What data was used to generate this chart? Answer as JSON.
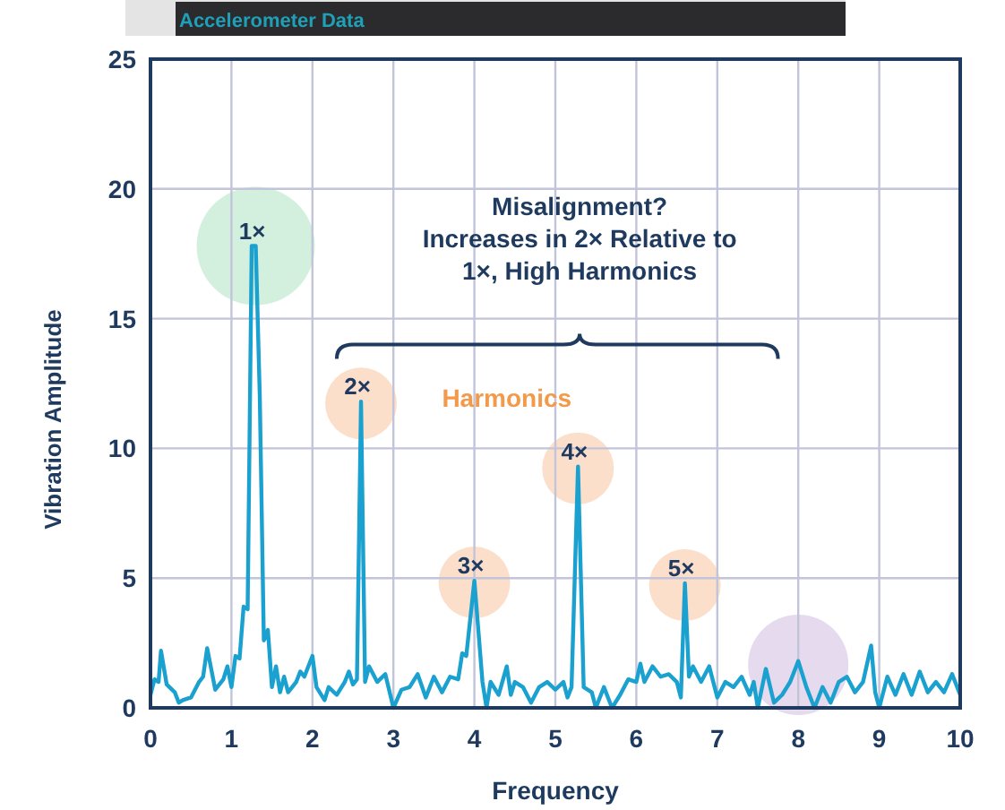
{
  "chart_data": {
    "type": "line",
    "title": "Accelerometer Data",
    "xlabel": "Frequency",
    "ylabel": "Vibration Amplitude",
    "x": [
      0,
      0.05,
      0.1,
      0.13,
      0.2,
      0.3,
      0.35,
      0.4,
      0.5,
      0.6,
      0.65,
      0.7,
      0.8,
      0.9,
      0.95,
      1.0,
      1.05,
      1.1,
      1.15,
      1.2,
      1.25,
      1.3,
      1.35,
      1.4,
      1.45,
      1.5,
      1.55,
      1.6,
      1.65,
      1.7,
      1.8,
      1.85,
      1.9,
      2.0,
      2.05,
      2.15,
      2.2,
      2.3,
      2.4,
      2.45,
      2.5,
      2.55,
      2.6,
      2.65,
      2.7,
      2.8,
      2.9,
      3.0,
      3.1,
      3.2,
      3.3,
      3.4,
      3.5,
      3.6,
      3.7,
      3.8,
      3.85,
      3.9,
      4.0,
      4.1,
      4.15,
      4.2,
      4.3,
      4.4,
      4.45,
      4.5,
      4.6,
      4.7,
      4.8,
      4.9,
      5.0,
      5.1,
      5.15,
      5.2,
      5.28,
      5.35,
      5.45,
      5.5,
      5.6,
      5.7,
      5.8,
      5.9,
      6.0,
      6.05,
      6.1,
      6.2,
      6.3,
      6.4,
      6.5,
      6.55,
      6.6,
      6.65,
      6.7,
      6.8,
      6.9,
      7.0,
      7.1,
      7.2,
      7.3,
      7.4,
      7.45,
      7.5,
      7.6,
      7.7,
      7.8,
      7.9,
      8.0,
      8.1,
      8.2,
      8.3,
      8.4,
      8.5,
      8.6,
      8.7,
      8.8,
      8.9,
      8.95,
      9.0,
      9.1,
      9.2,
      9.3,
      9.4,
      9.5,
      9.6,
      9.7,
      9.8,
      9.9,
      10
    ],
    "series": [
      {
        "color": "#1ba1cf",
        "values": [
          0.5,
          1.1,
          1.0,
          2.2,
          0.9,
          0.6,
          0.2,
          0.3,
          0.4,
          1.0,
          1.2,
          2.3,
          0.7,
          1.1,
          1.6,
          0.8,
          2.0,
          1.9,
          3.9,
          3.8,
          17.8,
          17.8,
          12,
          2.6,
          3.0,
          0.8,
          1.6,
          0.6,
          1.2,
          0.6,
          1.0,
          1.4,
          1.2,
          2.0,
          0.8,
          0.3,
          0.8,
          0.5,
          1.0,
          1.4,
          0.9,
          1.1,
          11.8,
          1.0,
          1.6,
          1.0,
          1.3,
          0.0,
          0.7,
          0.8,
          1.3,
          0.4,
          1.2,
          0.6,
          1.2,
          1.1,
          2.1,
          2.0,
          4.9,
          1.0,
          0.0,
          1.0,
          0.5,
          1.6,
          0.5,
          1.0,
          0.8,
          0.2,
          0.8,
          1.0,
          0.7,
          1.0,
          0.4,
          0.8,
          9.3,
          0.8,
          0.6,
          0.0,
          0.8,
          0.0,
          0.5,
          1.1,
          1.0,
          1.7,
          1.0,
          1.6,
          1.2,
          1.3,
          1.0,
          0.4,
          4.8,
          1.2,
          1.6,
          1.0,
          1.6,
          0.4,
          1.0,
          0.8,
          1.2,
          0.5,
          1.0,
          0.0,
          1.5,
          0.2,
          0.5,
          1.0,
          1.8,
          0.8,
          0.0,
          0.8,
          0.2,
          1.0,
          1.2,
          0.6,
          1.0,
          2.4,
          0.6,
          0.0,
          1.2,
          0.5,
          1.3,
          0.5,
          1.4,
          0.6,
          1.0,
          0.6,
          1.3,
          0.5
        ]
      }
    ],
    "xlim": [
      0,
      10
    ],
    "xticks": [
      0,
      1,
      2,
      3,
      4,
      5,
      6,
      7,
      8,
      9,
      10
    ],
    "ylim": [
      0,
      25
    ],
    "yticks": [
      0,
      5,
      10,
      15,
      20,
      25
    ],
    "grid": true,
    "marker": "none",
    "line_style": "solid",
    "annotations": [
      {
        "text": "1×",
        "x": 1.3,
        "y": 17.8
      },
      {
        "text": "2×",
        "x": 2.6,
        "y": 11.8
      },
      {
        "text": "3×",
        "x": 4.0,
        "y": 4.9
      },
      {
        "text": "4×",
        "x": 5.28,
        "y": 9.3
      },
      {
        "text": "5×",
        "x": 6.6,
        "y": 4.8
      },
      "Misalignment?\nIncreases in 2× Relative to\n1×, High Harmonics",
      "Harmonics"
    ]
  }
}
